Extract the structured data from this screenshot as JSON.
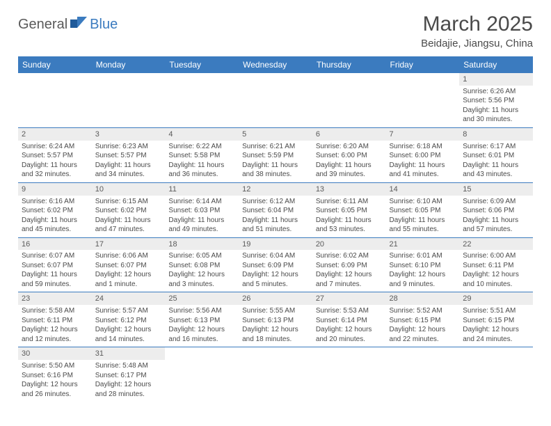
{
  "logo": {
    "part1": "General",
    "part2": "Blue"
  },
  "title": "March 2025",
  "location": "Beidajie, Jiangsu, China",
  "colors": {
    "header_bg": "#3b7bbf",
    "header_text": "#ffffff",
    "border": "#3b7bbf",
    "daynum_bg": "#ededed",
    "text": "#4a4a4a"
  },
  "weekdays": [
    "Sunday",
    "Monday",
    "Tuesday",
    "Wednesday",
    "Thursday",
    "Friday",
    "Saturday"
  ],
  "weeks": [
    [
      null,
      null,
      null,
      null,
      null,
      null,
      {
        "d": "1",
        "sr": "6:26 AM",
        "ss": "5:56 PM",
        "dl": "11 hours and 30 minutes."
      }
    ],
    [
      {
        "d": "2",
        "sr": "6:24 AM",
        "ss": "5:57 PM",
        "dl": "11 hours and 32 minutes."
      },
      {
        "d": "3",
        "sr": "6:23 AM",
        "ss": "5:57 PM",
        "dl": "11 hours and 34 minutes."
      },
      {
        "d": "4",
        "sr": "6:22 AM",
        "ss": "5:58 PM",
        "dl": "11 hours and 36 minutes."
      },
      {
        "d": "5",
        "sr": "6:21 AM",
        "ss": "5:59 PM",
        "dl": "11 hours and 38 minutes."
      },
      {
        "d": "6",
        "sr": "6:20 AM",
        "ss": "6:00 PM",
        "dl": "11 hours and 39 minutes."
      },
      {
        "d": "7",
        "sr": "6:18 AM",
        "ss": "6:00 PM",
        "dl": "11 hours and 41 minutes."
      },
      {
        "d": "8",
        "sr": "6:17 AM",
        "ss": "6:01 PM",
        "dl": "11 hours and 43 minutes."
      }
    ],
    [
      {
        "d": "9",
        "sr": "6:16 AM",
        "ss": "6:02 PM",
        "dl": "11 hours and 45 minutes."
      },
      {
        "d": "10",
        "sr": "6:15 AM",
        "ss": "6:02 PM",
        "dl": "11 hours and 47 minutes."
      },
      {
        "d": "11",
        "sr": "6:14 AM",
        "ss": "6:03 PM",
        "dl": "11 hours and 49 minutes."
      },
      {
        "d": "12",
        "sr": "6:12 AM",
        "ss": "6:04 PM",
        "dl": "11 hours and 51 minutes."
      },
      {
        "d": "13",
        "sr": "6:11 AM",
        "ss": "6:05 PM",
        "dl": "11 hours and 53 minutes."
      },
      {
        "d": "14",
        "sr": "6:10 AM",
        "ss": "6:05 PM",
        "dl": "11 hours and 55 minutes."
      },
      {
        "d": "15",
        "sr": "6:09 AM",
        "ss": "6:06 PM",
        "dl": "11 hours and 57 minutes."
      }
    ],
    [
      {
        "d": "16",
        "sr": "6:07 AM",
        "ss": "6:07 PM",
        "dl": "11 hours and 59 minutes."
      },
      {
        "d": "17",
        "sr": "6:06 AM",
        "ss": "6:07 PM",
        "dl": "12 hours and 1 minute."
      },
      {
        "d": "18",
        "sr": "6:05 AM",
        "ss": "6:08 PM",
        "dl": "12 hours and 3 minutes."
      },
      {
        "d": "19",
        "sr": "6:04 AM",
        "ss": "6:09 PM",
        "dl": "12 hours and 5 minutes."
      },
      {
        "d": "20",
        "sr": "6:02 AM",
        "ss": "6:09 PM",
        "dl": "12 hours and 7 minutes."
      },
      {
        "d": "21",
        "sr": "6:01 AM",
        "ss": "6:10 PM",
        "dl": "12 hours and 9 minutes."
      },
      {
        "d": "22",
        "sr": "6:00 AM",
        "ss": "6:11 PM",
        "dl": "12 hours and 10 minutes."
      }
    ],
    [
      {
        "d": "23",
        "sr": "5:58 AM",
        "ss": "6:11 PM",
        "dl": "12 hours and 12 minutes."
      },
      {
        "d": "24",
        "sr": "5:57 AM",
        "ss": "6:12 PM",
        "dl": "12 hours and 14 minutes."
      },
      {
        "d": "25",
        "sr": "5:56 AM",
        "ss": "6:13 PM",
        "dl": "12 hours and 16 minutes."
      },
      {
        "d": "26",
        "sr": "5:55 AM",
        "ss": "6:13 PM",
        "dl": "12 hours and 18 minutes."
      },
      {
        "d": "27",
        "sr": "5:53 AM",
        "ss": "6:14 PM",
        "dl": "12 hours and 20 minutes."
      },
      {
        "d": "28",
        "sr": "5:52 AM",
        "ss": "6:15 PM",
        "dl": "12 hours and 22 minutes."
      },
      {
        "d": "29",
        "sr": "5:51 AM",
        "ss": "6:15 PM",
        "dl": "12 hours and 24 minutes."
      }
    ],
    [
      {
        "d": "30",
        "sr": "5:50 AM",
        "ss": "6:16 PM",
        "dl": "12 hours and 26 minutes."
      },
      {
        "d": "31",
        "sr": "5:48 AM",
        "ss": "6:17 PM",
        "dl": "12 hours and 28 minutes."
      },
      null,
      null,
      null,
      null,
      null
    ]
  ],
  "labels": {
    "sunrise": "Sunrise: ",
    "sunset": "Sunset: ",
    "daylight": "Daylight: "
  }
}
